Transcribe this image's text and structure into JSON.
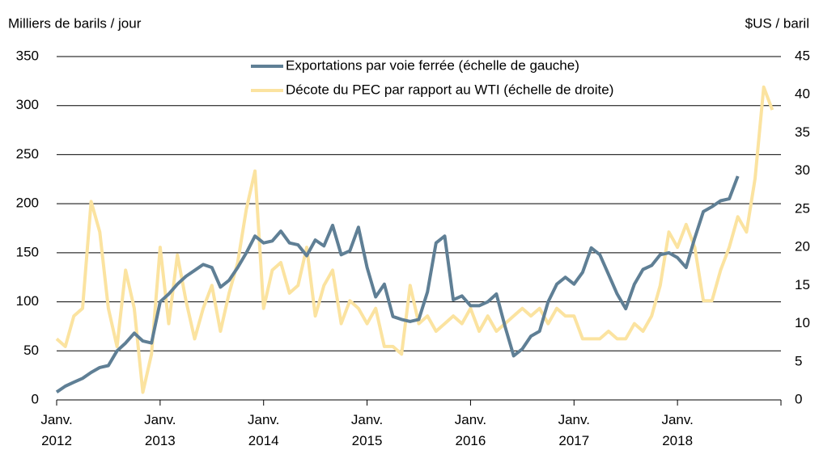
{
  "chart_data": {
    "type": "line",
    "y_label": "Milliers de barils / jour",
    "y2_label": "$US / baril",
    "xlim": [
      2012,
      2019
    ],
    "xticks": [
      {
        "value": 2012,
        "label": "Janv.\n2012"
      },
      {
        "value": 2013,
        "label": "Janv.\n2013"
      },
      {
        "value": 2014,
        "label": "Janv.\n2014"
      },
      {
        "value": 2015,
        "label": "Janv.\n2015"
      },
      {
        "value": 2016,
        "label": "Janv.\n2016"
      },
      {
        "value": 2017,
        "label": "Janv.\n2017"
      },
      {
        "value": 2018,
        "label": "Janv.\n2018"
      },
      {
        "value": 2019,
        "label": ""
      }
    ],
    "ylim": [
      0,
      350
    ],
    "yticks": [
      0,
      50,
      100,
      150,
      200,
      250,
      300,
      350
    ],
    "y2lim": [
      0,
      45
    ],
    "y2ticks": [
      0,
      5,
      10,
      15,
      20,
      25,
      30,
      35,
      40,
      45
    ],
    "grid": true,
    "legend": "top",
    "series": [
      {
        "name": "Exportations par voie ferrée (échelle de gauche)",
        "color": "#5f7f95",
        "start": 2012,
        "step": 0.0833333,
        "values": [
          8,
          14,
          18,
          22,
          28,
          33,
          35,
          50,
          58,
          68,
          60,
          58,
          100,
          108,
          118,
          126,
          132,
          138,
          135,
          115,
          122,
          135,
          150,
          167,
          160,
          162,
          172,
          160,
          158,
          147,
          163,
          157,
          178,
          148,
          152,
          176,
          135,
          105,
          118,
          85,
          82,
          80,
          82,
          110,
          160,
          167,
          102,
          106,
          96,
          96,
          100,
          108,
          75,
          45,
          52,
          65,
          70,
          100,
          118,
          125,
          118,
          130,
          155,
          148,
          128,
          108,
          93,
          118,
          133,
          137,
          148,
          150,
          145,
          135,
          165,
          192,
          197,
          203,
          205,
          228
        ]
      },
      {
        "name": "Décote du PEC par rapport au WTI (échelle de droite)",
        "color": "#fbe3a0",
        "axis": "y2",
        "start": 2012,
        "step": 0.0833333,
        "values": [
          8,
          7,
          11,
          12,
          26,
          22,
          12,
          7,
          17,
          12,
          1,
          6,
          20,
          10,
          19,
          13,
          8,
          12,
          15,
          9,
          14,
          18,
          25,
          30,
          12,
          17,
          18,
          14,
          15,
          20,
          11,
          15,
          17,
          10,
          13,
          12,
          10,
          12,
          7,
          7,
          6,
          15,
          10,
          11,
          9,
          10,
          11,
          10,
          12,
          9,
          11,
          9,
          10,
          11,
          12,
          11,
          12,
          10,
          12,
          11,
          11,
          8,
          8,
          8,
          9,
          8,
          8,
          10,
          9,
          11,
          15,
          22,
          20,
          23,
          20,
          13,
          13,
          17,
          20,
          24,
          22,
          29,
          41,
          38
        ]
      }
    ]
  }
}
